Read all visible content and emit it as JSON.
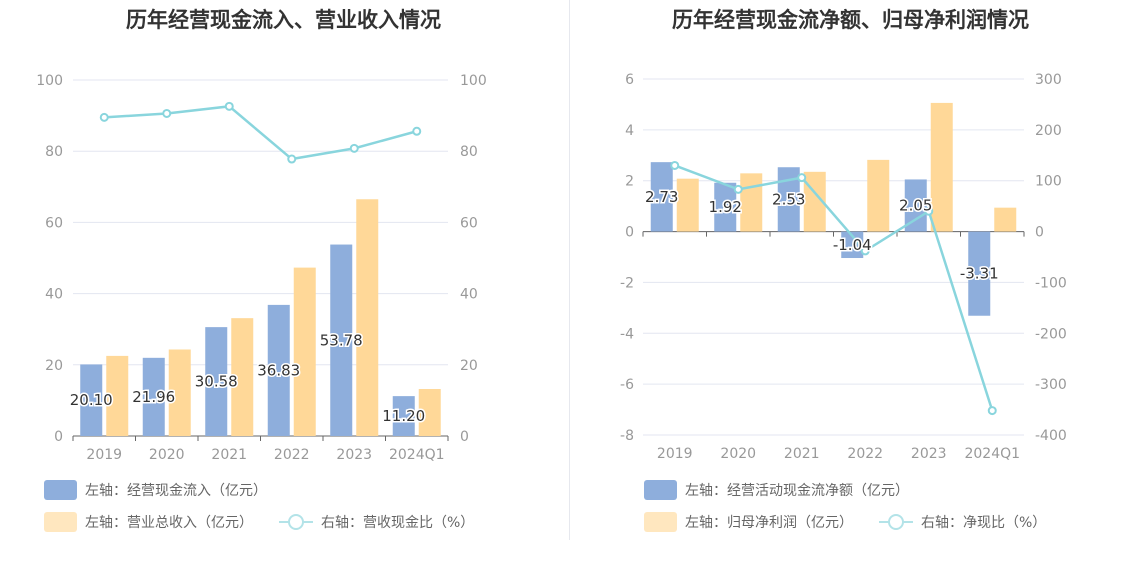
{
  "colors": {
    "inflow": "#8eaedc",
    "revenue": "#ffd898",
    "line": "#89d5dd",
    "grid": "#e3e6f0",
    "axis_text": "#999999",
    "label_text": "#333333"
  },
  "chart_data": [
    {
      "type": "bar",
      "title": "历年经营现金流入、营业收入情况",
      "categories": [
        "2019",
        "2020",
        "2021",
        "2022",
        "2023",
        "2024Q1"
      ],
      "left_axis": {
        "ticks": [
          "0",
          "20",
          "40",
          "60",
          "80",
          "100"
        ],
        "ylim": [
          0,
          100
        ]
      },
      "right_axis": {
        "ticks": [
          "0",
          "20",
          "40",
          "60",
          "80",
          "100"
        ],
        "ylim": [
          0,
          100
        ]
      },
      "series": [
        {
          "name": "左轴：经营现金流入（亿元）",
          "type": "bar",
          "axis": "left",
          "values": [
            20.1,
            21.96,
            30.58,
            36.83,
            53.78,
            11.2
          ],
          "labels": [
            "20.10",
            "21.96",
            "30.58",
            "36.83",
            "53.78",
            "11.20"
          ]
        },
        {
          "name": "左轴：营业总收入（亿元）",
          "type": "bar",
          "axis": "left",
          "values": [
            22.5,
            24.3,
            33.1,
            47.3,
            66.5,
            13.2
          ]
        },
        {
          "name": "右轴：营收现金比（%）",
          "type": "line",
          "axis": "right",
          "values": [
            89.5,
            90.6,
            92.6,
            77.8,
            80.8,
            85.6
          ]
        }
      ],
      "grid": true,
      "legend_position": "bottom"
    },
    {
      "type": "bar",
      "title": "历年经营现金流净额、归母净利润情况",
      "categories": [
        "2019",
        "2020",
        "2021",
        "2022",
        "2023",
        "2024Q1"
      ],
      "left_axis": {
        "ticks": [
          "-8",
          "-6",
          "-4",
          "-2",
          "0",
          "2",
          "4",
          "6"
        ],
        "ylim": [
          -8,
          6
        ]
      },
      "right_axis": {
        "ticks": [
          "-400",
          "-300",
          "-200",
          "-100",
          "0",
          "100",
          "200",
          "300"
        ],
        "ylim": [
          -400,
          300
        ]
      },
      "series": [
        {
          "name": "左轴：经营活动现金流净额（亿元）",
          "type": "bar",
          "axis": "left",
          "values": [
            2.73,
            1.92,
            2.53,
            -1.04,
            2.05,
            -3.31
          ],
          "labels": [
            "2.73",
            "1.92",
            "2.53",
            "-1.04",
            "2.05",
            "-3.31"
          ]
        },
        {
          "name": "左轴：归母净利润（亿元）",
          "type": "bar",
          "axis": "left",
          "values": [
            2.08,
            2.29,
            2.35,
            2.82,
            5.06,
            0.94
          ]
        },
        {
          "name": "右轴：净现比（%）",
          "type": "line",
          "axis": "right",
          "values": [
            130,
            83,
            106,
            -38,
            40,
            -352
          ]
        }
      ],
      "grid": true,
      "legend_position": "bottom"
    }
  ]
}
